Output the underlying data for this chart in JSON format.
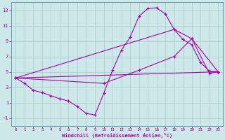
{
  "xlabel": "Windchill (Refroidissement éolien,°C)",
  "bg_color": "#cce8e8",
  "line_color": "#aa00aa",
  "grid_color": "#aacccc",
  "spine_color": "#6699aa",
  "xlim": [
    -0.5,
    23.5
  ],
  "ylim": [
    -2.0,
    14.0
  ],
  "yticks": [
    -1,
    1,
    3,
    5,
    7,
    9,
    11,
    13
  ],
  "xticks": [
    0,
    1,
    2,
    3,
    4,
    5,
    6,
    7,
    8,
    9,
    10,
    11,
    12,
    13,
    14,
    15,
    16,
    17,
    18,
    19,
    20,
    21,
    22,
    23
  ],
  "series_main": [
    [
      0,
      4.2
    ],
    [
      1,
      3.5
    ],
    [
      2,
      2.6
    ],
    [
      3,
      2.3
    ],
    [
      4,
      1.9
    ],
    [
      5,
      1.5
    ],
    [
      6,
      1.2
    ],
    [
      7,
      0.5
    ],
    [
      8,
      -0.4
    ],
    [
      9,
      -0.6
    ],
    [
      10,
      2.2
    ],
    [
      11,
      5.2
    ],
    [
      12,
      7.8
    ],
    [
      13,
      9.5
    ],
    [
      14,
      12.2
    ],
    [
      15,
      13.2
    ],
    [
      16,
      13.3
    ],
    [
      17,
      12.5
    ],
    [
      18,
      10.5
    ],
    [
      19,
      9.2
    ],
    [
      20,
      8.5
    ],
    [
      21,
      6.2
    ],
    [
      22,
      5.1
    ],
    [
      23,
      5.0
    ]
  ],
  "line_straight": [
    [
      0,
      4.2
    ],
    [
      23,
      5.0
    ]
  ],
  "line_mid": [
    [
      0,
      4.2
    ],
    [
      10,
      3.5
    ],
    [
      14,
      5.2
    ],
    [
      18,
      7.0
    ],
    [
      20,
      9.3
    ],
    [
      22,
      4.8
    ],
    [
      23,
      5.0
    ]
  ],
  "line_upper": [
    [
      0,
      4.2
    ],
    [
      18,
      10.5
    ],
    [
      20,
      9.3
    ],
    [
      23,
      5.0
    ]
  ]
}
